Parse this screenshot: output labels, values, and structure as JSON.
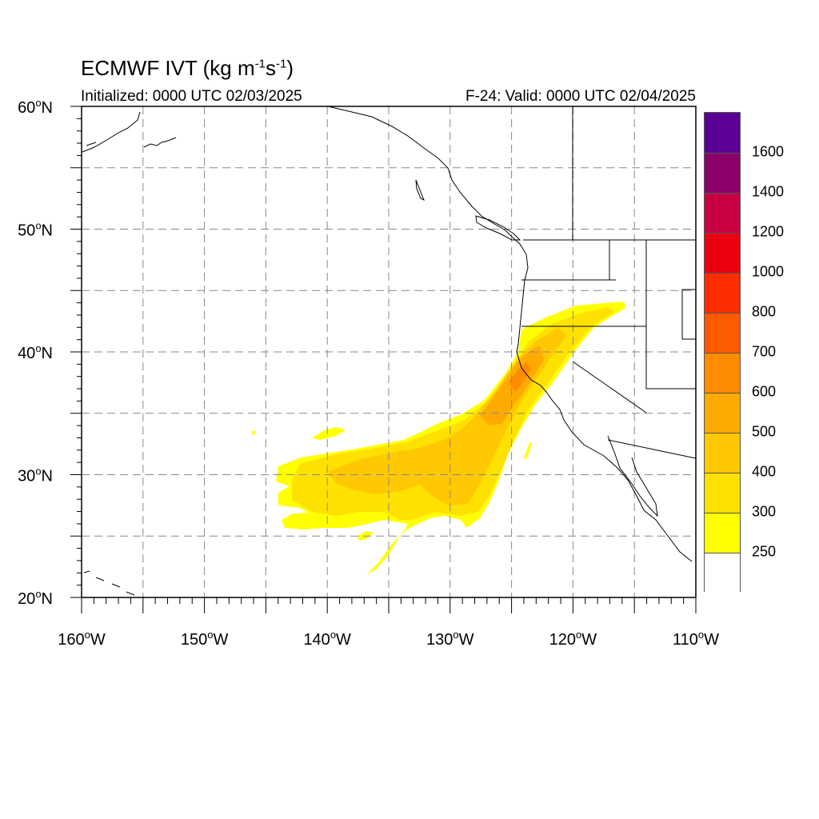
{
  "title": {
    "main": "ECMWF IVT (kg m",
    "exp1": "-1",
    "mid": "s",
    "exp2": "-1",
    "close": ")"
  },
  "initialized": "Initialized: 0000 UTC 02/03/2025",
  "valid": "F-24: Valid: 0000 UTC 02/04/2025",
  "axes": {
    "lat_labels": [
      {
        "deg": "60",
        "suffix": "N"
      },
      {
        "deg": "50",
        "suffix": "N"
      },
      {
        "deg": "40",
        "suffix": "N"
      },
      {
        "deg": "30",
        "suffix": "N"
      },
      {
        "deg": "20",
        "suffix": "N"
      }
    ],
    "lon_labels": [
      {
        "deg": "160",
        "suffix": "W"
      },
      {
        "deg": "150",
        "suffix": "W"
      },
      {
        "deg": "140",
        "suffix": "W"
      },
      {
        "deg": "130",
        "suffix": "W"
      },
      {
        "deg": "120",
        "suffix": "W"
      },
      {
        "deg": "110",
        "suffix": "W"
      }
    ],
    "lon_range": [
      -160,
      -110
    ],
    "lat_range": [
      20,
      60
    ],
    "grid": true
  },
  "colorbar": {
    "levels": [
      "250",
      "300",
      "400",
      "500",
      "600",
      "700",
      "800",
      "1000",
      "1200",
      "1400",
      "1600"
    ],
    "colors": [
      "#ffffff",
      "#ffff00",
      "#ffe100",
      "#ffc800",
      "#ffaa00",
      "#ff8c00",
      "#ff5a00",
      "#ff2d00",
      "#eb000f",
      "#c80041",
      "#8c0069",
      "#5a0096"
    ]
  },
  "colors": {
    "ivt_250": "#ffff00",
    "ivt_300": "#ffe100",
    "ivt_400": "#ffc800",
    "ivt_500": "#ffaa00",
    "ivt_600": "#ff8c00"
  }
}
